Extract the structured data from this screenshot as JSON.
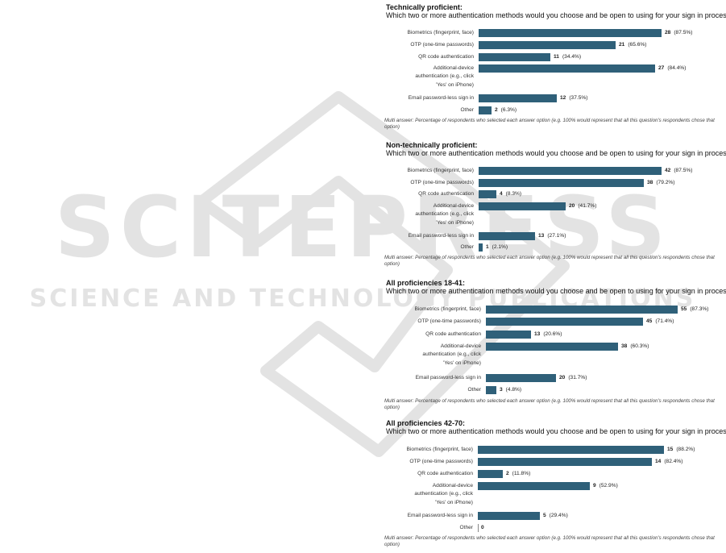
{
  "watermark": {
    "line1": "SCITEPRESS",
    "line2": "SCIENCE AND TECHNOLOGY PUBLICATIONS"
  },
  "colors": {
    "bar": "#2f6079",
    "watermark": "#e3e3e3"
  },
  "chart_data": [
    {
      "type": "bar",
      "orientation": "horizontal",
      "title": "Technically proficient:",
      "subtitle": "Which two or more authentication methods would you choose and be open to using for your sign in process?",
      "categories": [
        "Biometrics (fingerprint, face)",
        "OTP (one-time passwords)",
        "QR code authentication",
        "Additional-device authentication (e.g., click 'Yes' on iPhone)",
        "Email password-less sign in",
        "Other"
      ],
      "values": [
        28,
        21,
        11,
        27,
        12,
        2
      ],
      "percents": [
        "(87.5%)",
        "(65.6%)",
        "(34.4%)",
        "(84.4%)",
        "(37.5%)",
        "(6.3%)"
      ],
      "xlim": [
        0,
        28
      ],
      "note": "Multi answer: Percentage of respondents who selected each answer option (e.g. 100% would represent that all this question's respondents chose that option)"
    },
    {
      "type": "bar",
      "orientation": "horizontal",
      "title": "Non-technically proficient:",
      "subtitle": "Which two or more authentication methods would you choose and be open to using for your sign in process?",
      "categories": [
        "Biometrics (fingerprint, face)",
        "OTP (one-time passwords)",
        "QR code authentication",
        "Additional-device authentication (e.g., click 'Yes' on iPhone)",
        "Email password-less sign in",
        "Other"
      ],
      "values": [
        42,
        38,
        4,
        20,
        13,
        1
      ],
      "percents": [
        "(87.5%)",
        "(79.2%)",
        "(8.3%)",
        "(41.7%)",
        "(27.1%)",
        "(2.1%)"
      ],
      "xlim": [
        0,
        42
      ],
      "note": "Multi answer: Percentage of respondents who selected each answer option (e.g. 100% would represent that all this question's respondents chose that option)"
    },
    {
      "type": "bar",
      "orientation": "horizontal",
      "title": "All proficiencies 18-41:",
      "subtitle": "Which two or more authentication methods would you choose and be open to using for your sign in process?",
      "categories": [
        "Biometrics (fingerprint, face)",
        "OTP (one-time passwords)",
        "QR code authentication",
        "Additional-device authentication (e.g., click 'Yes' on iPhone)",
        "Email password-less sign in",
        "Other"
      ],
      "values": [
        55,
        45,
        13,
        38,
        20,
        3
      ],
      "percents": [
        "(87.3%)",
        "(71.4%)",
        "(20.6%)",
        "(60.3%)",
        "(31.7%)",
        "(4.8%)"
      ],
      "xlim": [
        0,
        55
      ],
      "note": "Multi answer: Percentage of respondents who selected each answer option (e.g. 100% would represent that all this question's respondents chose that option)"
    },
    {
      "type": "bar",
      "orientation": "horizontal",
      "title": "All proficiencies 42-70:",
      "subtitle": "Which two or more authentication methods would you choose and be open to using for your sign in process?",
      "categories": [
        "Biometrics (fingerprint, face)",
        "OTP (one-time passwords)",
        "QR code authentication",
        "Additional-device authentication (e.g., click 'Yes' on iPhone)",
        "Email password-less sign in",
        "Other"
      ],
      "values": [
        15,
        14,
        2,
        9,
        5,
        0
      ],
      "percents": [
        "(88.2%)",
        "(82.4%)",
        "(11.8%)",
        "(52.9%)",
        "(29.4%)",
        ""
      ],
      "xlim": [
        0,
        15
      ],
      "note": "Multi answer: Percentage of respondents who selected each answer option (e.g. 100% would represent that all this question's respondents chose that option)"
    }
  ]
}
